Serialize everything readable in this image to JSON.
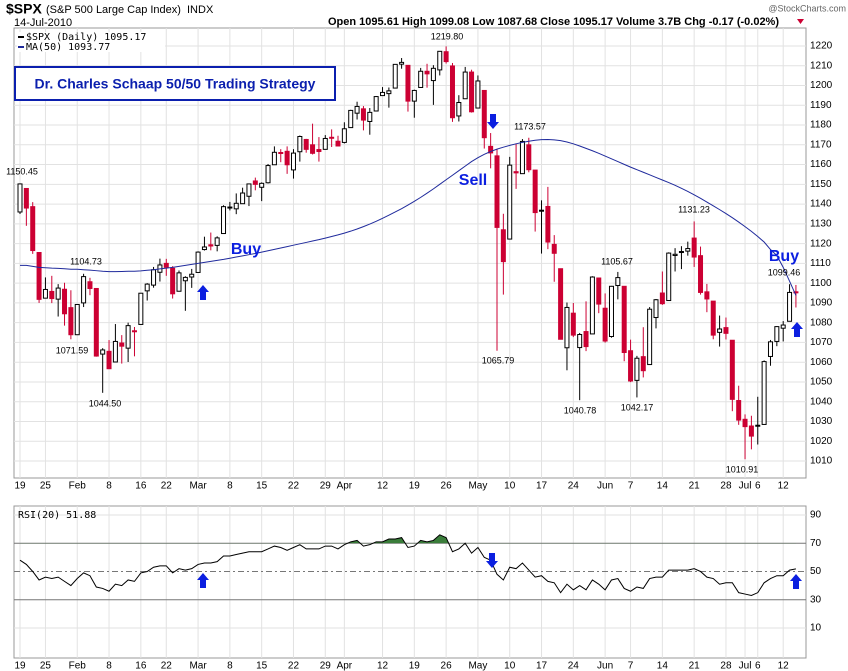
{
  "header": {
    "symbol": "$SPX",
    "name": "(S&P 500 Large Cap Index)",
    "exchange": "INDX",
    "date": "14-Jul-2010",
    "quote": "Open 1095.61 High 1099.08 Low 1087.68 Close 1095.17 Volume 3.7B Chg -0.17 (-0.02%)",
    "source": "@StockCharts.com"
  },
  "chart_data": [
    {
      "type": "candlestick",
      "title": "Dr. Charles Schaap 50/50 Trading Strategy",
      "categories": [
        "19",
        null,
        null,
        null,
        "25",
        null,
        null,
        null,
        null,
        "Feb",
        null,
        null,
        null,
        null,
        "8",
        null,
        null,
        null,
        null,
        "16",
        null,
        null,
        null,
        "22",
        null,
        null,
        null,
        null,
        "Mar",
        null,
        null,
        null,
        null,
        "8",
        null,
        null,
        null,
        null,
        "15",
        null,
        null,
        null,
        null,
        "22",
        null,
        null,
        null,
        null,
        "29",
        null,
        null,
        "Apr",
        null,
        null,
        null,
        null,
        null,
        "12",
        null,
        null,
        null,
        null,
        "19",
        null,
        null,
        null,
        null,
        "26",
        null,
        null,
        null,
        null,
        "May",
        null,
        null,
        null,
        null,
        "10",
        null,
        null,
        null,
        null,
        "17",
        null,
        null,
        null,
        null,
        "24",
        null,
        null,
        null,
        null,
        "Jun",
        null,
        null,
        null,
        "7",
        null,
        null,
        null,
        null,
        "14",
        null,
        null,
        null,
        null,
        "21",
        null,
        null,
        null,
        null,
        "28",
        null,
        null,
        "Jul",
        null,
        "6",
        null,
        null,
        null,
        "12",
        null,
        null
      ],
      "series": [
        {
          "name": "$SPX (Daily) 1095.17",
          "up_color": "#000000",
          "down_color": "#cc0033",
          "open": [
            1136,
            1147.9,
            1138.7,
            1115.5,
            1092.4,
            1095.8,
            1091.9,
            1096.9,
            1087.6,
            1073.9,
            1090,
            1100.7,
            1097.3,
            1064.1,
            1065.5,
            1060.1,
            1069.7,
            1067.1,
            1075.9,
            1079.1,
            1096.1,
            1099,
            1105.5,
            1110,
            1107.5,
            1095.9,
            1101.2,
            1103.1,
            1105.4,
            1117,
            1119.4,
            1119.1,
            1125.1,
            1138.4,
            1137.6,
            1140.2,
            1143.96,
            1151.7,
            1148.5,
            1150.8,
            1159.9,
            1166.1,
            1166.7,
            1157.3,
            1166.5,
            1172.7,
            1170,
            1167.6,
            1167.7,
            1173.8,
            1171.8,
            1171.2,
            1178.7,
            1186,
            1188.2,
            1181.8,
            1187.1,
            1194.9,
            1195.9,
            1198.7,
            1210.8,
            1210.2,
            1192.1,
            1199,
            1207.2,
            1202.5,
            1207.9,
            1217.1,
            1209.9,
            1184.6,
            1193.3,
            1206.8,
            1188.6,
            1197.5,
            1169.2,
            1164.4,
            1127,
            1122.3,
            1156.4,
            1155.4,
            1170,
            1157.2,
            1136.5,
            1138.8,
            1119.6,
            1107.3,
            1067.3,
            1084.8,
            1067.4,
            1075.5,
            1074.3,
            1102.6,
            1087.3,
            1073,
            1098.8,
            1098.4,
            1065.8,
            1050.8,
            1062.8,
            1058.8,
            1082.6,
            1095,
            1091.2,
            1114,
            1115.98,
            1116.2,
            1122.8,
            1113.9,
            1095.6,
            1090.9,
            1075.1,
            1077.5,
            1071.1,
            1040.6,
            1031.1,
            1027.7,
            1028.1,
            1028.5,
            1062.9,
            1070.5,
            1077.2,
            1080.7,
            1095.61
          ],
          "high": [
            1150.45,
            1147.9,
            1141,
            1115.5,
            1102.9,
            1103.7,
            1099.5,
            1100.2,
            1096.4,
            1089.4,
            1104.73,
            1102.7,
            1097.3,
            1067.1,
            1071.2,
            1079.3,
            1073.7,
            1080,
            1077.8,
            1095,
            1100,
            1108.2,
            1112.4,
            1112.3,
            1108.6,
            1106.4,
            1103.5,
            1107.2,
            1116.1,
            1123.5,
            1125.6,
            1123.7,
            1139.4,
            1141.1,
            1145.4,
            1148.3,
            1150.2,
            1153.4,
            1150.98,
            1160.3,
            1169.2,
            1167.8,
            1169.2,
            1167.8,
            1174.7,
            1173,
            1180.7,
            1173.9,
            1174.9,
            1177.8,
            1174.6,
            1181.4,
            1187.7,
            1191.8,
            1189.6,
            1188.6,
            1194.7,
            1199.2,
            1199,
            1210.7,
            1213.9,
            1210.2,
            1197.9,
            1208.9,
            1210.99,
            1210.3,
            1217.3,
            1219.8,
            1211.4,
            1195.1,
            1209.4,
            1207.99,
            1205.1,
            1197.5,
            1175.95,
            1167.6,
            1135.1,
            1163.9,
            1170.5,
            1172.9,
            1173.57,
            1157.2,
            1141.9,
            1148.7,
            1124.3,
            1107.3,
            1090.2,
            1089.95,
            1074.8,
            1090.8,
            1103.5,
            1102.6,
            1094.8,
            1098.6,
            1105.67,
            1098.4,
            1071.4,
            1063.2,
            1077.7,
            1087.9,
            1092,
            1105.9,
            1115.6,
            1117.7,
            1118.7,
            1121,
            1131.23,
            1118.5,
            1099.6,
            1090.9,
            1083.6,
            1082.6,
            1071.1,
            1048.1,
            1033.6,
            1032.9,
            1042.5,
            1060.9,
            1071.25,
            1078.2,
            1080.8,
            1099.46,
            1099.08
          ],
          "low": [
            1135,
            1129,
            1114.8,
            1090,
            1092.4,
            1089.9,
            1083.1,
            1078.5,
            1071.59,
            1073.9,
            1087.9,
            1093.9,
            1062.8,
            1044.5,
            1056.5,
            1060.1,
            1059.3,
            1060.1,
            1062.97,
            1079.1,
            1091.2,
            1097.7,
            1100.8,
            1103.7,
            1092.2,
            1095.9,
            1086,
            1097.6,
            1105.4,
            1116.5,
            1116.6,
            1116.1,
            1125.1,
            1136.8,
            1134.9,
            1140.1,
            1138.99,
            1146.97,
            1141.5,
            1150.4,
            1159.9,
            1161.2,
            1155.3,
            1152.9,
            1161.5,
            1166,
            1165.1,
            1161.5,
            1167.7,
            1168.9,
            1169.3,
            1170.7,
            1178.7,
            1182.8,
            1177.3,
            1175.1,
            1187.1,
            1194.7,
            1188.8,
            1198.7,
            1208.5,
            1186.8,
            1183.7,
            1199,
            1198.9,
            1190.2,
            1205.1,
            1211.1,
            1181.6,
            1181.8,
            1193.3,
            1186.3,
            1188.6,
            1168.1,
            1158.1,
            1065.79,
            1094.2,
            1122.3,
            1147.7,
            1155.4,
            1156.1,
            1126.1,
            1114.96,
            1117.2,
            1100.7,
            1071.6,
            1055.9,
            1072.7,
            1040.78,
            1065.6,
            1074.3,
            1084.8,
            1069.9,
            1072.4,
            1091.8,
            1060.5,
            1049.9,
            1042.17,
            1052.3,
            1058.8,
            1077.1,
            1089,
            1091.2,
            1105.9,
            1107.1,
            1113.9,
            1108.2,
            1094.2,
            1085.3,
            1071.6,
            1067.9,
            1071.5,
            1035.2,
            1028.3,
            1010.91,
            1015.9,
            1018.35,
            1028.5,
            1058.2,
            1068.1,
            1070.5,
            1080.7,
            1087.68
          ],
          "close": [
            1150.2,
            1138,
            1116.5,
            1091.8,
            1096.8,
            1092.2,
            1097.5,
            1084.5,
            1073.9,
            1089.2,
            1103.3,
            1097.3,
            1063.1,
            1066.2,
            1056.7,
            1070.5,
            1068.1,
            1078.5,
            1075.5,
            1094.9,
            1099.5,
            1106.8,
            1109.2,
            1108,
            1094.6,
            1105.2,
            1102.9,
            1104.5,
            1115.7,
            1118.3,
            1118.8,
            1122.9,
            1138.7,
            1138.5,
            1140.4,
            1145.6,
            1150.2,
            1149.99,
            1150.5,
            1159.5,
            1166.2,
            1165.8,
            1159.9,
            1165.8,
            1174.2,
            1167.7,
            1165.7,
            1166.6,
            1173.2,
            1173.3,
            1169.4,
            1178.1,
            1187.4,
            1189.4,
            1182.5,
            1186.4,
            1194.4,
            1196.5,
            1197.3,
            1210.7,
            1211.7,
            1192.1,
            1197.5,
            1207.2,
            1205.9,
            1208.7,
            1217.3,
            1212.1,
            1183.7,
            1191.4,
            1206.8,
            1186.7,
            1202.3,
            1173.6,
            1165.9,
            1128.2,
            1110.9,
            1159.7,
            1155.8,
            1171.7,
            1157.4,
            1135.7,
            1136.9,
            1120.8,
            1115.1,
            1071.6,
            1087.7,
            1073.7,
            1074,
            1067.9,
            1103.1,
            1089.4,
            1070.7,
            1098.4,
            1102.8,
            1064.9,
            1050.5,
            1062,
            1055.7,
            1086.8,
            1091.6,
            1089.6,
            1115.2,
            1114.6,
            1116,
            1117.5,
            1113.2,
            1095.3,
            1092,
            1073.7,
            1076.8,
            1074.6,
            1041.2,
            1030.7,
            1027.4,
            1022.6,
            1028.1,
            1060.3,
            1070.3,
            1078,
            1078.8,
            1095.3,
            1095.17
          ]
        },
        {
          "name": "MA(50) 1093.77",
          "color": "#1f2a9c",
          "values": [
            1109,
            1109,
            1108.5,
            1108,
            1107.8,
            1107.6,
            1107.5,
            1107.3,
            1107,
            1107,
            1106.8,
            1106.6,
            1106.3,
            1106,
            1105.8,
            1105.8,
            1105.9,
            1106,
            1106,
            1106.2,
            1106.5,
            1106.8,
            1107.2,
            1107.6,
            1108,
            1108.5,
            1109,
            1109.5,
            1110,
            1110.5,
            1111,
            1111.5,
            1112,
            1112.6,
            1113.2,
            1113.8,
            1114.4,
            1115,
            1115.7,
            1116.4,
            1117.1,
            1117.8,
            1118.5,
            1119.2,
            1119.9,
            1120.6,
            1121.3,
            1122,
            1122.8,
            1123.6,
            1124.4,
            1125.3,
            1126.3,
            1127.4,
            1128.6,
            1129.9,
            1131.3,
            1132.8,
            1134.4,
            1136,
            1137.7,
            1139.5,
            1141.4,
            1143.4,
            1145.5,
            1147.7,
            1150,
            1152.3,
            1154.6,
            1156.9,
            1159.2,
            1161.5,
            1163.5,
            1165.2,
            1166.6,
            1167.8,
            1168.8,
            1169.7,
            1170.5,
            1171.2,
            1171.8,
            1172.3,
            1172.6,
            1172.7,
            1172.5,
            1172.1,
            1171.4,
            1170.5,
            1169.4,
            1168.2,
            1167,
            1165.7,
            1164.3,
            1162.9,
            1161.5,
            1160.1,
            1158.7,
            1157.4,
            1156.1,
            1154.8,
            1153.5,
            1152.2,
            1150.9,
            1149.5,
            1148,
            1146.4,
            1144.7,
            1142.9,
            1141,
            1139.1,
            1137.2,
            1135.2,
            1133.1,
            1130.9,
            1128.6,
            1126.2,
            1123.6,
            1120.8,
            1117,
            1114,
            1108,
            1101,
            1093.77
          ]
        }
      ],
      "annotations": [
        "1150.45",
        "1104.73",
        "1071.59",
        "1044.50",
        "1219.80",
        "1173.57",
        "1065.79",
        "1105.67",
        "1040.78",
        "1042.17",
        "1131.23",
        "1010.91",
        "1099.46",
        "Buy",
        "Sell",
        "Buy"
      ],
      "ylim": [
        1001.4,
        1229.1
      ],
      "yticks": [
        1010,
        1020,
        1030,
        1040,
        1050,
        1060,
        1070,
        1080,
        1090,
        1100,
        1110,
        1120,
        1130,
        1140,
        1150,
        1160,
        1170,
        1180,
        1190,
        1200,
        1210,
        1220
      ],
      "grid": true
    },
    {
      "type": "line",
      "series": [
        {
          "name": "RSI(20) 51.88",
          "color": "#000000",
          "overbought_color": "#3a7d3a",
          "values": [
            58,
            55,
            50,
            44,
            46,
            45,
            46,
            43,
            40,
            45,
            49,
            47,
            39,
            38,
            36,
            41,
            40,
            44,
            43,
            49,
            50,
            53,
            54,
            54,
            49,
            52,
            51,
            52,
            55,
            56,
            56,
            57,
            61,
            61,
            62,
            63,
            64,
            64,
            64,
            66,
            68,
            67,
            65,
            67,
            69,
            66,
            66,
            66,
            68,
            68,
            66,
            69,
            71,
            72,
            68,
            69,
            71,
            71,
            73,
            73,
            74,
            67,
            68,
            72,
            71,
            72,
            76,
            74,
            64,
            66,
            70,
            63,
            67,
            60,
            58,
            48,
            44,
            53,
            52,
            56,
            51,
            46,
            47,
            43,
            42,
            35,
            41,
            37,
            40,
            37,
            44,
            41,
            37,
            44,
            45,
            38,
            36,
            39,
            38,
            45,
            46,
            46,
            51,
            51,
            51,
            51,
            52,
            50,
            46,
            45,
            41,
            42,
            42,
            35,
            34,
            33,
            35,
            42,
            45,
            47,
            47,
            51,
            51.88
          ]
        }
      ],
      "ylim": [
        -11.3,
        96.4
      ],
      "yticks": [
        10,
        30,
        50,
        70,
        90
      ],
      "grid": true
    }
  ]
}
